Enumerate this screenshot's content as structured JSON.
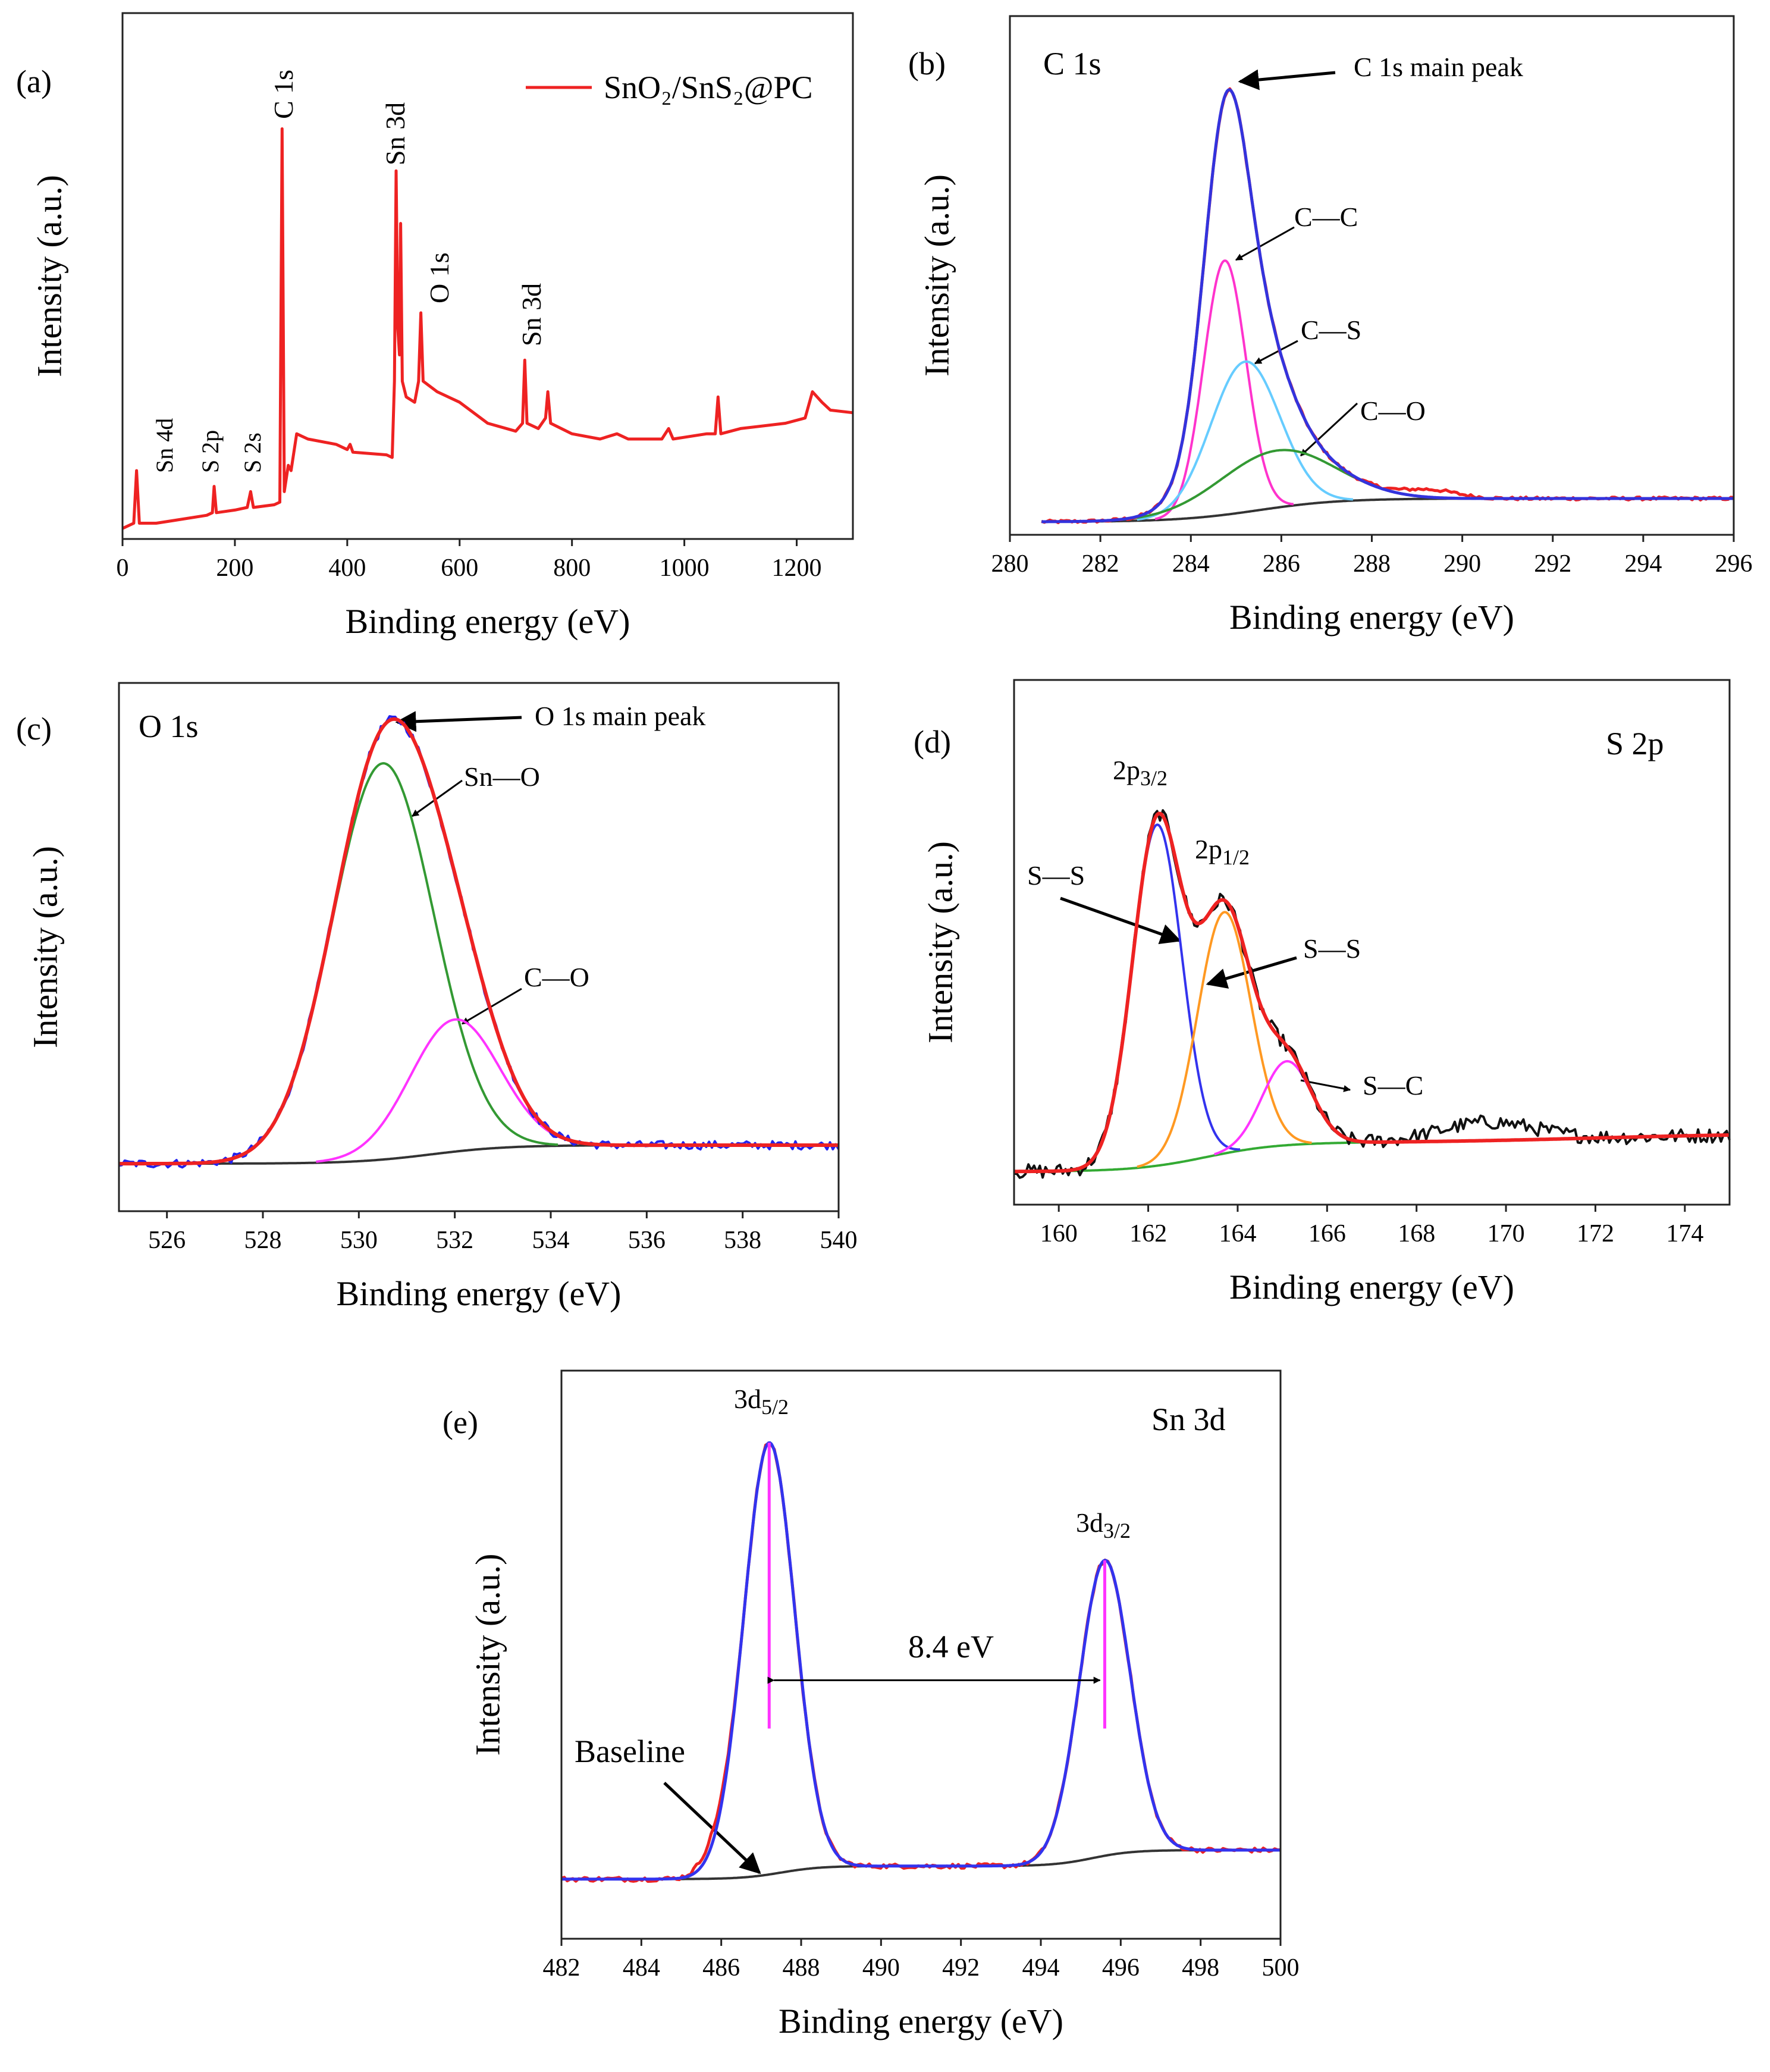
{
  "chart_data": [
    {
      "id": "a",
      "type": "line",
      "panel_label": "(a)",
      "xlabel": "Binding energy (eV)",
      "ylabel": "Intensity (a.u.)",
      "xlim": [
        0,
        1300
      ],
      "ylim": [
        0,
        1
      ],
      "xticks": [
        0,
        200,
        400,
        600,
        800,
        1000,
        1200
      ],
      "legend": {
        "label": "SnO₂/SnS₂@PC",
        "color": "#ee2222",
        "position": "top-right"
      },
      "peak_labels": [
        "C 1s",
        "Sn 3d",
        "O 1s",
        "Sn 3d",
        "Sn 4d",
        "S 2p",
        "S 2s"
      ],
      "series": [
        {
          "name": "SnO₂/SnS₂@PC",
          "color": "#ee2222",
          "points": [
            [
              0,
              0.02
            ],
            [
              20,
              0.03
            ],
            [
              25,
              0.13
            ],
            [
              30,
              0.03
            ],
            [
              60,
              0.03
            ],
            [
              90,
              0.035
            ],
            [
              150,
              0.045
            ],
            [
              160,
              0.05
            ],
            [
              163,
              0.1
            ],
            [
              167,
              0.05
            ],
            [
              200,
              0.055
            ],
            [
              222,
              0.06
            ],
            [
              228,
              0.09
            ],
            [
              233,
              0.06
            ],
            [
              270,
              0.065
            ],
            [
              280,
              0.07
            ],
            [
              284,
              0.78
            ],
            [
              288,
              0.09
            ],
            [
              295,
              0.14
            ],
            [
              300,
              0.13
            ],
            [
              310,
              0.2
            ],
            [
              330,
              0.19
            ],
            [
              380,
              0.18
            ],
            [
              400,
              0.17
            ],
            [
              405,
              0.18
            ],
            [
              410,
              0.165
            ],
            [
              470,
              0.16
            ],
            [
              480,
              0.155
            ],
            [
              484,
              0.3
            ],
            [
              487,
              0.7
            ],
            [
              490,
              0.4
            ],
            [
              493,
              0.35
            ],
            [
              495,
              0.6
            ],
            [
              498,
              0.3
            ],
            [
              505,
              0.27
            ],
            [
              520,
              0.26
            ],
            [
              527,
              0.3
            ],
            [
              531,
              0.43
            ],
            [
              535,
              0.3
            ],
            [
              560,
              0.28
            ],
            [
              600,
              0.26
            ],
            [
              650,
              0.22
            ],
            [
              700,
              0.205
            ],
            [
              712,
              0.22
            ],
            [
              716,
              0.34
            ],
            [
              720,
              0.22
            ],
            [
              740,
              0.21
            ],
            [
              753,
              0.23
            ],
            [
              757,
              0.28
            ],
            [
              762,
              0.22
            ],
            [
              800,
              0.2
            ],
            [
              850,
              0.19
            ],
            [
              880,
              0.2
            ],
            [
              900,
              0.19
            ],
            [
              960,
              0.19
            ],
            [
              972,
              0.21
            ],
            [
              980,
              0.19
            ],
            [
              1040,
              0.2
            ],
            [
              1055,
              0.2
            ],
            [
              1060,
              0.27
            ],
            [
              1065,
              0.2
            ],
            [
              1100,
              0.21
            ],
            [
              1180,
              0.22
            ],
            [
              1215,
              0.23
            ],
            [
              1228,
              0.28
            ],
            [
              1245,
              0.26
            ],
            [
              1260,
              0.245
            ],
            [
              1300,
              0.24
            ]
          ]
        }
      ]
    },
    {
      "id": "b",
      "type": "line",
      "panel_label": "(b)",
      "title": "C 1s",
      "xlabel": "Binding energy (eV)",
      "ylabel": "Intensity (a.u.)",
      "xlim": [
        280,
        296
      ],
      "ylim": [
        0,
        1
      ],
      "xticks": [
        280,
        282,
        284,
        286,
        288,
        290,
        292,
        294,
        296
      ],
      "range": [
        280.7,
        296
      ],
      "baseline": {
        "level": 0.025,
        "color": "#333333",
        "steps": [
          {
            "center": 285.5,
            "width": 0.9,
            "rise": 0.045
          }
        ]
      },
      "components": [
        {
          "name": "C—C",
          "color": "#ff33cc",
          "center": 284.75,
          "fwhm": 1.1,
          "amp": 0.49
        },
        {
          "name": "C—S",
          "color": "#66ccff",
          "center": 285.2,
          "fwhm": 1.8,
          "amp": 0.29
        },
        {
          "name": "C—O",
          "color": "#339933",
          "center": 285.9,
          "fwhm": 3.0,
          "amp": 0.11
        }
      ],
      "extra_raw": [
        {
          "center": 289.3,
          "fwhm": 1.4,
          "amp": 0.015
        }
      ],
      "fit_color": "#3333dd",
      "raw_color": "#ee2222",
      "raw_noise": 0.003,
      "annotations": {
        "main_peak": "C 1s main peak"
      }
    },
    {
      "id": "c",
      "type": "line",
      "panel_label": "(c)",
      "title": "O 1s",
      "xlabel": "Binding energy (eV)",
      "ylabel": "Intensity (a.u.)",
      "xlim": [
        525,
        540
      ],
      "ylim": [
        0,
        1
      ],
      "xticks": [
        526,
        528,
        530,
        532,
        534,
        536,
        538,
        540
      ],
      "range": [
        525,
        540
      ],
      "baseline": {
        "level": 0.09,
        "color": "#333333",
        "steps": [
          {
            "center": 531.5,
            "width": 0.8,
            "rise": 0.035
          }
        ]
      },
      "components": [
        {
          "name": "Sn—O",
          "color": "#339933",
          "center": 530.5,
          "fwhm": 2.5,
          "amp": 0.75
        },
        {
          "name": "C—O",
          "color": "#ff33ff",
          "center": 532.0,
          "fwhm": 2.2,
          "amp": 0.25
        }
      ],
      "extra_raw": [],
      "fit_color": "#ee2222",
      "raw_color": "#2222ee",
      "raw_noise": 0.008,
      "annotations": {
        "main_peak": "O 1s main peak"
      }
    },
    {
      "id": "d",
      "type": "line",
      "panel_label": "(d)",
      "title": "S 2p",
      "xlabel": "Binding energy (eV)",
      "ylabel": "Intensity (a.u.)",
      "xlim": [
        159,
        175
      ],
      "ylim": [
        0,
        1
      ],
      "xticks": [
        160,
        162,
        164,
        166,
        168,
        170,
        172,
        174
      ],
      "range": [
        159,
        175
      ],
      "baseline": {
        "level": 0.063,
        "color": "#33aa33",
        "steps": [
          {
            "center": 163.3,
            "width": 0.8,
            "rise": 0.055
          },
          {
            "center": 172,
            "width": 2,
            "rise": 0.018
          }
        ]
      },
      "components": [
        {
          "name": "S—S (2p3/2)",
          "color": "#3333ee",
          "center": 162.2,
          "fwhm": 1.3,
          "amp": 0.65
        },
        {
          "name": "S—S (2p1/2)",
          "color": "#ff9922",
          "center": 163.7,
          "fwhm": 1.4,
          "amp": 0.46
        },
        {
          "name": "S—C",
          "color": "#ff33ff",
          "center": 165.1,
          "fwhm": 1.3,
          "amp": 0.16
        }
      ],
      "extra_raw": [
        {
          "center": 169.6,
          "fwhm": 2.5,
          "amp": 0.035
        }
      ],
      "fit_color": "#ee2222",
      "raw_color": "#111111",
      "raw_noise": 0.014,
      "annotations": {
        "p32": {
          "main": "2p",
          "sub": "3/2"
        },
        "p12": {
          "main": "2p",
          "sub": "1/2"
        },
        "ss_left": "S—S",
        "ss_right": "S—S",
        "sc": "S—C"
      }
    },
    {
      "id": "e",
      "type": "line",
      "panel_label": "(e)",
      "title": "Sn 3d",
      "xlabel": "Binding energy (eV)",
      "ylabel": "Intensity (a.u.)",
      "xlim": [
        482,
        500
      ],
      "ylim": [
        0,
        1
      ],
      "xticks": [
        482,
        484,
        486,
        488,
        490,
        492,
        494,
        496,
        498,
        500
      ],
      "range": [
        482,
        500
      ],
      "baseline": {
        "level": 0.105,
        "color": "#333333",
        "steps": [
          {
            "center": 487.5,
            "width": 0.5,
            "rise": 0.023
          },
          {
            "center": 495.3,
            "width": 0.5,
            "rise": 0.028
          }
        ]
      },
      "components": [
        {
          "name": "3d5/2",
          "color": "#3333ee",
          "center": 487.2,
          "fwhm": 1.5,
          "amp": 0.76
        },
        {
          "name": "3d3/2",
          "color": "#3333ee",
          "center": 495.6,
          "fwhm": 1.5,
          "amp": 0.52
        }
      ],
      "extra_raw": [
        {
          "center": 485.8,
          "fwhm": 0.8,
          "amp": 0.02
        }
      ],
      "fit_color": "#3333ee",
      "raw_color": "#ee2222",
      "raw_noise": 0.004,
      "annotations": {
        "d52": {
          "main": "3d",
          "sub": "5/2"
        },
        "d32": {
          "main": "3d",
          "sub": "3/2"
        },
        "splitting": "8.4 eV",
        "baseline": "Baseline"
      }
    }
  ]
}
